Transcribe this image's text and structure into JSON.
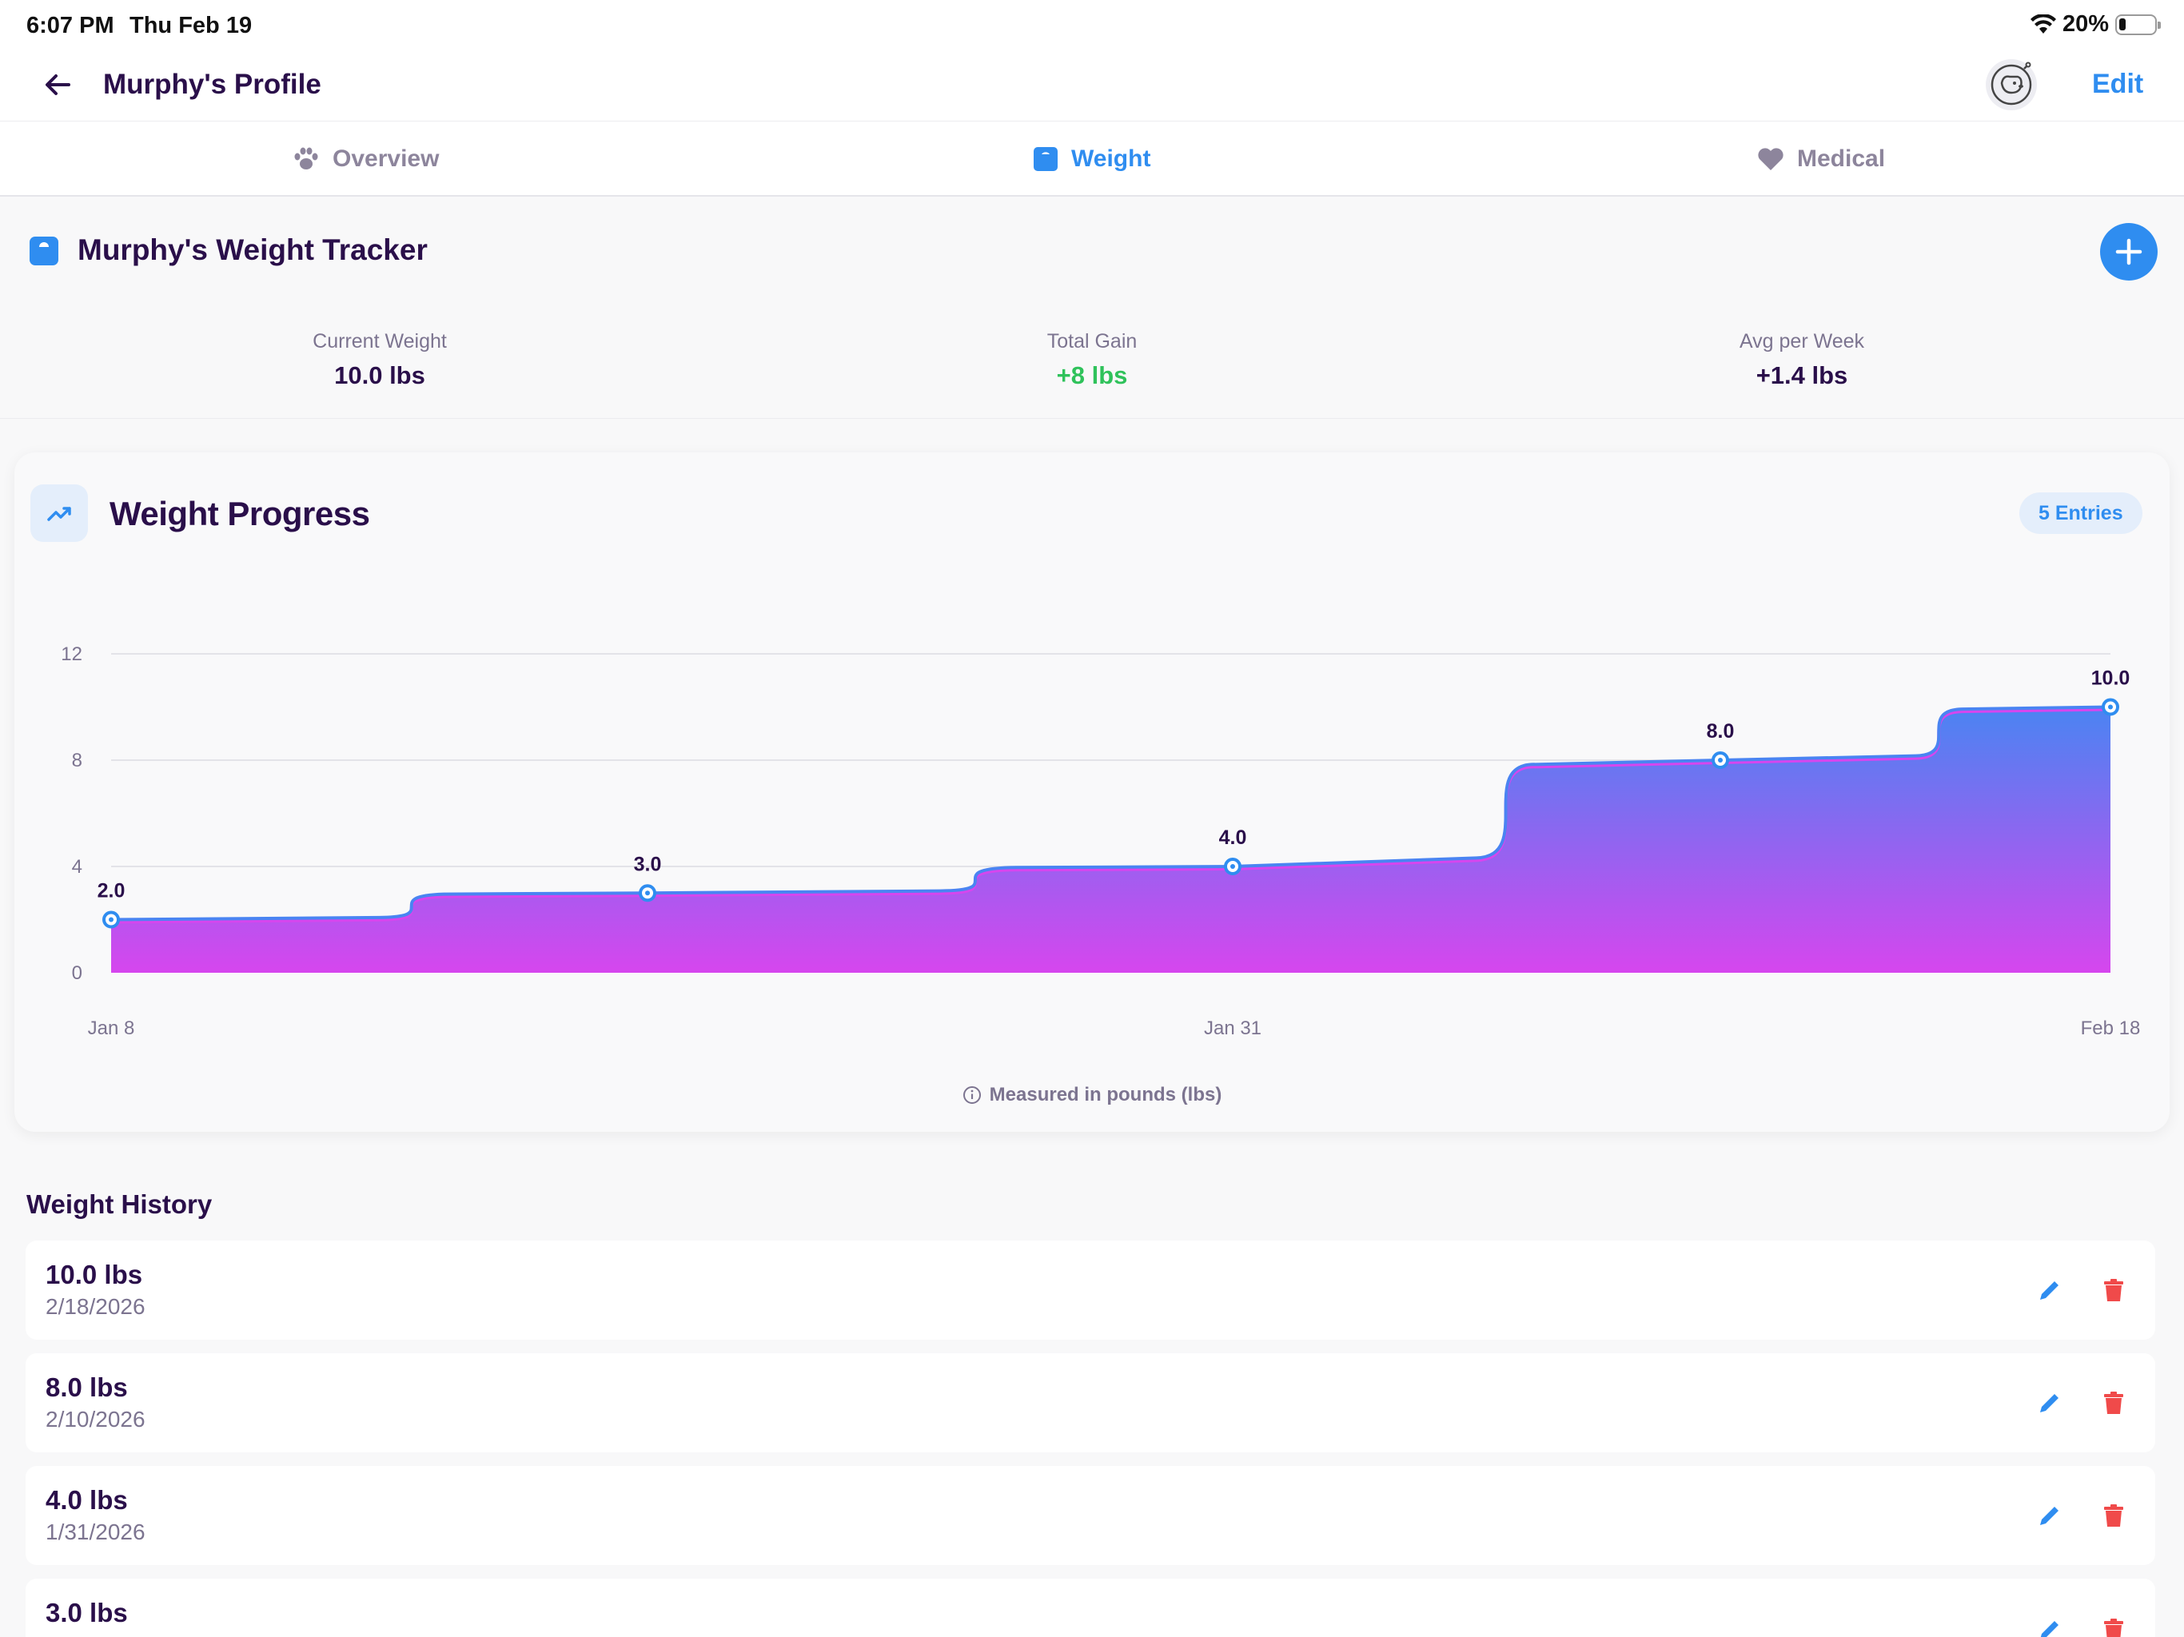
{
  "status_bar": {
    "time": "6:07 PM",
    "date": "Thu Feb 19",
    "battery": "20%"
  },
  "header": {
    "title": "Murphy's Profile",
    "edit_label": "Edit"
  },
  "tabs": [
    {
      "label": "Overview",
      "icon": "paw-icon",
      "active": false
    },
    {
      "label": "Weight",
      "icon": "scale-icon",
      "active": true
    },
    {
      "label": "Medical",
      "icon": "heart-icon",
      "active": false
    }
  ],
  "tracker": {
    "title": "Murphy's Weight Tracker",
    "stats": [
      {
        "label": "Current Weight",
        "value": "10.0 lbs"
      },
      {
        "label": "Total Gain",
        "value": "+8 lbs"
      },
      {
        "label": "Avg per Week",
        "value": "+1.4 lbs"
      }
    ]
  },
  "progress": {
    "title": "Weight Progress",
    "entries_badge": "5 Entries",
    "footnote": "Measured in pounds (lbs)"
  },
  "chart_data": {
    "type": "area",
    "x": [
      "2026-01-08",
      "2026-01-19",
      "2026-01-31",
      "2026-02-10",
      "2026-02-18"
    ],
    "values": [
      2.0,
      3.0,
      4.0,
      8.0,
      10.0
    ],
    "data_labels": [
      "2.0",
      "3.0",
      "4.0",
      "8.0",
      "10.0"
    ],
    "x_tick_labels": [
      "Jan 8",
      "Jan 31",
      "Feb 18"
    ],
    "x_ticks": [
      "2026-01-08",
      "2026-01-31",
      "2026-02-18"
    ],
    "y_ticks": [
      0,
      4,
      8,
      12
    ],
    "ylim": [
      0,
      12
    ],
    "grid": true,
    "colors": {
      "line": "#4a84f2",
      "fill_top": "#4a84f2",
      "fill_bottom": "#d646ee",
      "point": "#2f8df0"
    }
  },
  "history": {
    "title": "Weight History",
    "rows": [
      {
        "weight": "10.0 lbs",
        "date": "2/18/2026"
      },
      {
        "weight": "8.0 lbs",
        "date": "2/10/2026"
      },
      {
        "weight": "4.0 lbs",
        "date": "1/31/2026"
      },
      {
        "weight": "3.0 lbs",
        "date": ""
      }
    ]
  },
  "colors": {
    "accent": "#2f8df0",
    "title": "#2a0f4a",
    "positive": "#2fc25b",
    "delete": "#f04a4a"
  }
}
